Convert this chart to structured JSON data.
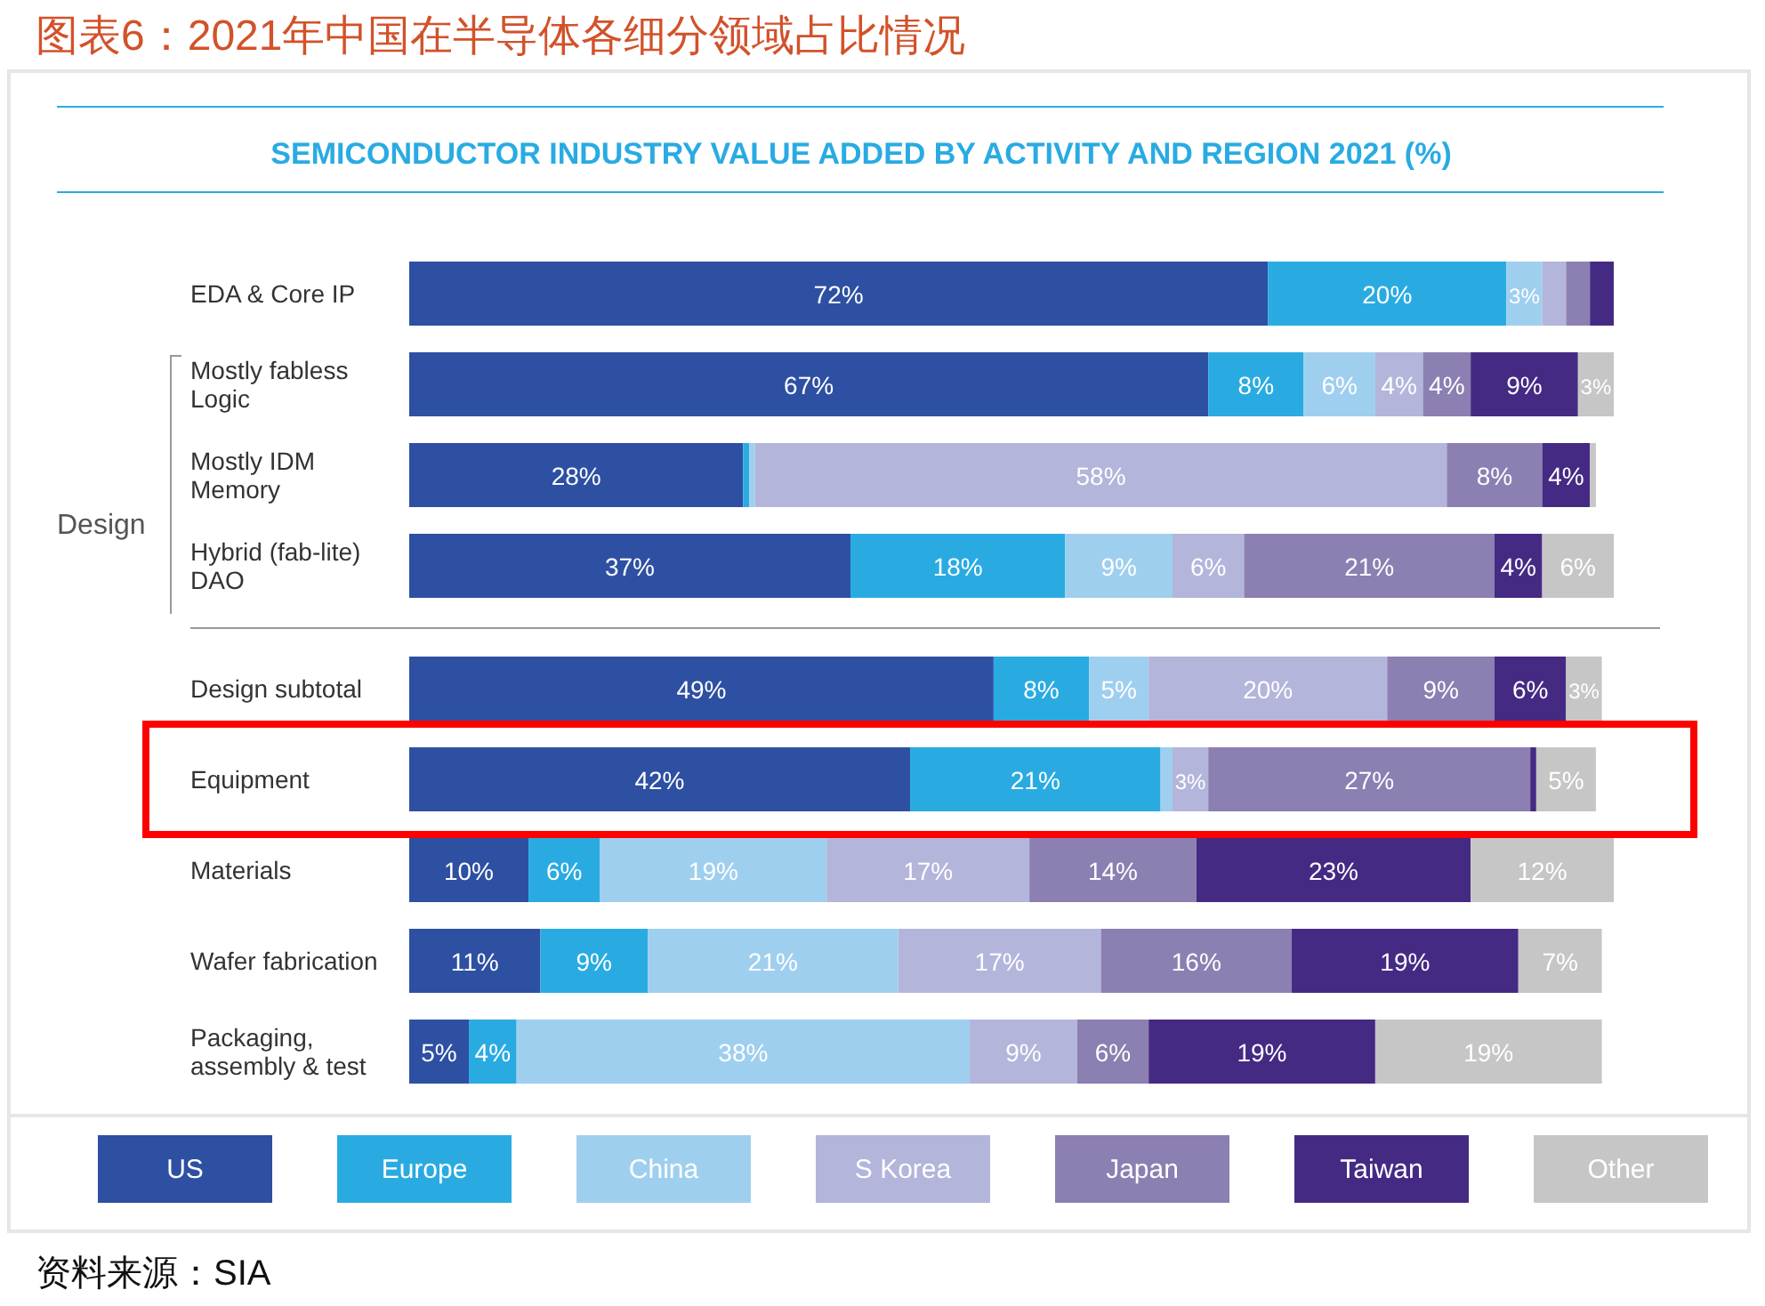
{
  "chart_data": {
    "type": "bar",
    "orientation": "horizontal",
    "stacked": true,
    "legend": "bottom",
    "title": "图表6：2021年中国在半导体各细分领域占比情况",
    "subtitle": "SEMICONDUCTOR INDUSTRY VALUE ADDED BY ACTIVITY AND REGION 2021 (%)",
    "categories": [
      "EDA & Core IP",
      "Mostly fabless\nLogic",
      "Mostly IDM\nMemory",
      "Hybrid (fab-lite)\nDAO",
      "Design subtotal",
      "Equipment",
      "Materials",
      "Wafer fabrication",
      "Packaging,\nassembly & test"
    ],
    "series": [
      {
        "name": "US",
        "color": "#2e50a2",
        "values": [
          72,
          67,
          28,
          37,
          49,
          42,
          10,
          11,
          5
        ],
        "value_labels": [
          "72%",
          "67%",
          "28%",
          "37%",
          "49%",
          "42%",
          "10%",
          "11%",
          "5%"
        ]
      },
      {
        "name": "Europe",
        "color": "#29abe2",
        "values": [
          20,
          8,
          0.5,
          18,
          8,
          21,
          6,
          9,
          4
        ],
        "value_labels": [
          "20%",
          "8%",
          null,
          "18%",
          "8%",
          "21%",
          "6%",
          "9%",
          "4%"
        ]
      },
      {
        "name": "China",
        "color": "#9fcfef",
        "values": [
          3,
          6,
          0.5,
          9,
          5,
          1,
          19,
          21,
          38
        ],
        "value_labels": [
          "3%",
          "6%",
          null,
          "9%",
          "5%",
          null,
          "19%",
          "21%",
          "38%"
        ]
      },
      {
        "name": "S Korea",
        "color": "#b3b5db",
        "values": [
          2,
          4,
          58,
          6,
          20,
          3,
          17,
          17,
          9
        ],
        "value_labels": [
          null,
          "4%",
          "58%",
          "6%",
          "20%",
          "3%",
          "17%",
          "17%",
          "9%"
        ]
      },
      {
        "name": "Japan",
        "color": "#8c7fb2",
        "values": [
          2,
          4,
          8,
          21,
          9,
          27,
          14,
          16,
          6
        ],
        "value_labels": [
          null,
          "4%",
          "8%",
          "21%",
          "9%",
          "27%",
          "14%",
          "16%",
          "6%"
        ]
      },
      {
        "name": "Taiwan",
        "color": "#452a84",
        "values": [
          2,
          9,
          4,
          4,
          6,
          0.5,
          23,
          19,
          19
        ],
        "value_labels": [
          null,
          "9%",
          "4%",
          "4%",
          "6%",
          null,
          "23%",
          "19%",
          "19%"
        ]
      },
      {
        "name": "Other",
        "color": "#c6c6c6",
        "values": [
          0,
          3,
          0.5,
          6,
          3,
          5,
          12,
          7,
          19
        ],
        "value_labels": [
          null,
          "3%",
          null,
          "6%",
          "3%",
          "5%",
          "12%",
          "7%",
          "19%"
        ]
      }
    ],
    "annotations": [
      "Design",
      "资料来源：SIA"
    ]
  }
}
